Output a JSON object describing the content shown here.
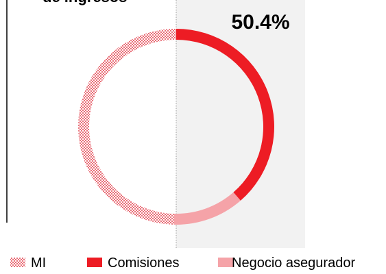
{
  "chart_data": {
    "type": "donut",
    "title": "de ingresos",
    "annotation": "50.4%",
    "categories": [
      "Comisiones",
      "Negocio asegurador",
      "MI"
    ],
    "series": [
      {
        "name": "MI",
        "color": "#e9717a",
        "pattern": "checker",
        "values": [
          null,
          null,
          49.6
        ]
      },
      {
        "name": "Comisiones",
        "color": "#ed1c24",
        "values": [
          38.6,
          null,
          null
        ]
      },
      {
        "name": "Negocio asegurador",
        "color": "#f5a3a8",
        "values": [
          null,
          11.8,
          null
        ]
      }
    ]
  }
}
